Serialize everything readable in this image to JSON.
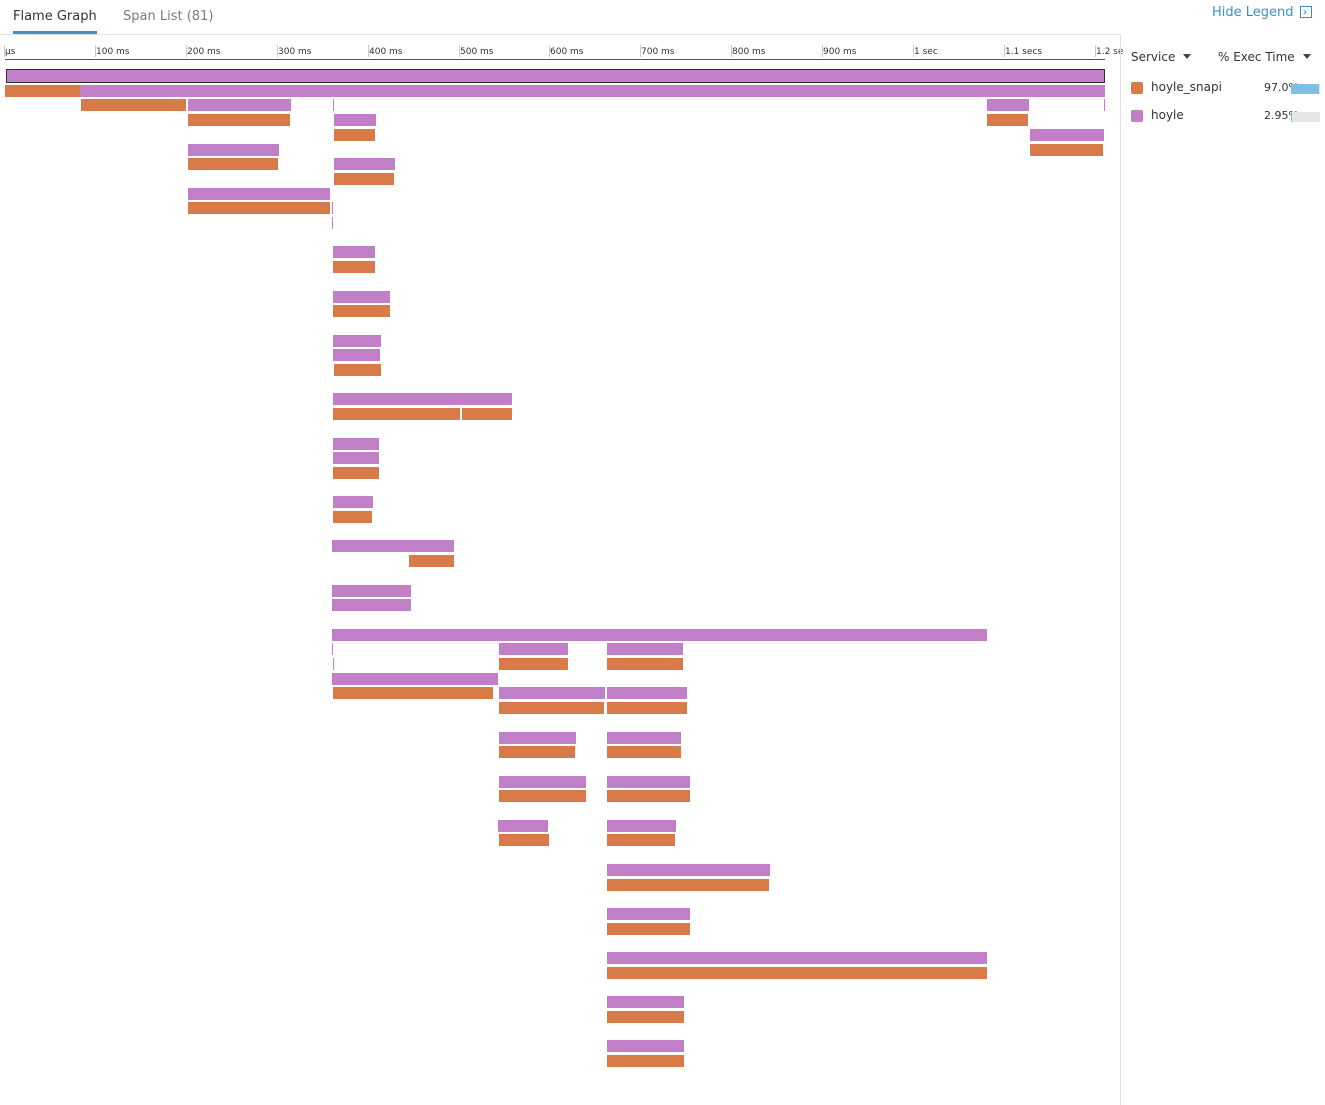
{
  "tabs": [
    {
      "label": "Flame Graph",
      "active": true
    },
    {
      "label": "Span List (81)",
      "active": false
    }
  ],
  "legend_toggle": {
    "label": "Hide Legend",
    "icon": "collapse-panel-icon"
  },
  "legend": {
    "service_header": "Service",
    "exec_header": "% Exec Time",
    "services": [
      {
        "name": "hoyle_snapi",
        "color": "#d97b48",
        "pct": "97.0%",
        "fraction": 0.97
      },
      {
        "name": "hoyle",
        "color": "#c07fc6",
        "pct": "2.95%",
        "fraction": 0.0295
      }
    ]
  },
  "timeline": {
    "total_ms": 1210,
    "ticks": [
      {
        "label": "µs",
        "ms": 0
      },
      {
        "label": "100 ms",
        "ms": 100
      },
      {
        "label": "200 ms",
        "ms": 200
      },
      {
        "label": "300 ms",
        "ms": 300
      },
      {
        "label": "400 ms",
        "ms": 400
      },
      {
        "label": "500 ms",
        "ms": 500
      },
      {
        "label": "600 ms",
        "ms": 600
      },
      {
        "label": "700 ms",
        "ms": 700
      },
      {
        "label": "800 ms",
        "ms": 800
      },
      {
        "label": "900 ms",
        "ms": 900
      },
      {
        "label": "1 sec",
        "ms": 1000
      },
      {
        "label": "1.1 secs",
        "ms": 1100
      },
      {
        "label": "1.2 se",
        "ms": 1200
      }
    ]
  },
  "spans": [
    {
      "service": "hoyle",
      "start": 2,
      "dur": 1207,
      "depth": 0,
      "root": true
    },
    {
      "service": "hoyle_snapi",
      "start": 0,
      "dur": 82,
      "depth": 1
    },
    {
      "service": "hoyle",
      "start": 83,
      "dur": 1127,
      "depth": 1
    },
    {
      "service": "hoyle_snapi",
      "start": 84,
      "dur": 115,
      "depth": 2
    },
    {
      "service": "hoyle",
      "start": 201,
      "dur": 114,
      "depth": 2
    },
    {
      "service": "hoyle_snapi",
      "start": 201,
      "dur": 113,
      "depth": 3
    },
    {
      "service": "hoyle",
      "start": 361,
      "dur": 1,
      "depth": 2
    },
    {
      "service": "hoyle",
      "start": 362,
      "dur": 46,
      "depth": 3
    },
    {
      "service": "hoyle_snapi",
      "start": 362,
      "dur": 45,
      "depth": 4
    },
    {
      "service": "hoyle",
      "start": 1080,
      "dur": 46,
      "depth": 2
    },
    {
      "service": "hoyle_snapi",
      "start": 1080,
      "dur": 45,
      "depth": 3
    },
    {
      "service": "hoyle",
      "start": 1127,
      "dur": 82,
      "depth": 4
    },
    {
      "service": "hoyle_snapi",
      "start": 1127,
      "dur": 81,
      "depth": 5
    },
    {
      "service": "hoyle",
      "start": 1209,
      "dur": 1,
      "depth": 2
    },
    {
      "service": "hoyle",
      "start": 201,
      "dur": 100,
      "depth": 5
    },
    {
      "service": "hoyle_snapi",
      "start": 201,
      "dur": 99,
      "depth": 6
    },
    {
      "service": "hoyle",
      "start": 362,
      "dur": 67,
      "depth": 6
    },
    {
      "service": "hoyle_snapi",
      "start": 362,
      "dur": 66,
      "depth": 7
    },
    {
      "service": "hoyle",
      "start": 201,
      "dur": 157,
      "depth": 8
    },
    {
      "service": "hoyle_snapi",
      "start": 201,
      "dur": 157,
      "depth": 9
    },
    {
      "service": "hoyle",
      "start": 360,
      "dur": 1,
      "depth": 9
    },
    {
      "service": "hoyle",
      "start": 360,
      "dur": 1,
      "depth": 10
    },
    {
      "service": "hoyle",
      "start": 361,
      "dur": 46,
      "depth": 12
    },
    {
      "service": "hoyle_snapi",
      "start": 361,
      "dur": 46,
      "depth": 13
    },
    {
      "service": "hoyle",
      "start": 361,
      "dur": 62,
      "depth": 15
    },
    {
      "service": "hoyle_snapi",
      "start": 361,
      "dur": 62,
      "depth": 16
    },
    {
      "service": "hoyle",
      "start": 361,
      "dur": 53,
      "depth": 18
    },
    {
      "service": "hoyle",
      "start": 361,
      "dur": 52,
      "depth": 19
    },
    {
      "service": "hoyle_snapi",
      "start": 362,
      "dur": 52,
      "depth": 20
    },
    {
      "service": "hoyle",
      "start": 361,
      "dur": 197,
      "depth": 22
    },
    {
      "service": "hoyle_snapi",
      "start": 361,
      "dur": 140,
      "depth": 23
    },
    {
      "service": "hoyle_snapi",
      "start": 503,
      "dur": 55,
      "depth": 23
    },
    {
      "service": "hoyle",
      "start": 361,
      "dur": 50,
      "depth": 25
    },
    {
      "service": "hoyle",
      "start": 361,
      "dur": 50,
      "depth": 26
    },
    {
      "service": "hoyle_snapi",
      "start": 361,
      "dur": 50,
      "depth": 27
    },
    {
      "service": "hoyle",
      "start": 361,
      "dur": 44,
      "depth": 29
    },
    {
      "service": "hoyle_snapi",
      "start": 361,
      "dur": 43,
      "depth": 30
    },
    {
      "service": "hoyle",
      "start": 360,
      "dur": 134,
      "depth": 32
    },
    {
      "service": "hoyle_snapi",
      "start": 444,
      "dur": 50,
      "depth": 33
    },
    {
      "service": "hoyle",
      "start": 360,
      "dur": 87,
      "depth": 35
    },
    {
      "service": "hoyle",
      "start": 360,
      "dur": 87,
      "depth": 36
    },
    {
      "service": "hoyle",
      "start": 360,
      "dur": 720,
      "depth": 38
    },
    {
      "service": "hoyle",
      "start": 360,
      "dur": 1,
      "depth": 39
    },
    {
      "service": "hoyle",
      "start": 543,
      "dur": 76,
      "depth": 39
    },
    {
      "service": "hoyle",
      "start": 662,
      "dur": 84,
      "depth": 39
    },
    {
      "service": "hoyle_snapi",
      "start": 543,
      "dur": 76,
      "depth": 40
    },
    {
      "service": "hoyle_snapi",
      "start": 662,
      "dur": 84,
      "depth": 40
    },
    {
      "service": "hoyle",
      "start": 361,
      "dur": 1,
      "depth": 40
    },
    {
      "service": "hoyle",
      "start": 360,
      "dur": 182,
      "depth": 41
    },
    {
      "service": "hoyle_snapi",
      "start": 361,
      "dur": 176,
      "depth": 42
    },
    {
      "service": "hoyle",
      "start": 543,
      "dur": 117,
      "depth": 42
    },
    {
      "service": "hoyle",
      "start": 662,
      "dur": 88,
      "depth": 42
    },
    {
      "service": "hoyle_snapi",
      "start": 543,
      "dur": 116,
      "depth": 43
    },
    {
      "service": "hoyle_snapi",
      "start": 662,
      "dur": 88,
      "depth": 43
    },
    {
      "service": "hoyle",
      "start": 543,
      "dur": 85,
      "depth": 45
    },
    {
      "service": "hoyle",
      "start": 662,
      "dur": 82,
      "depth": 45
    },
    {
      "service": "hoyle_snapi",
      "start": 543,
      "dur": 84,
      "depth": 46
    },
    {
      "service": "hoyle_snapi",
      "start": 662,
      "dur": 82,
      "depth": 46
    },
    {
      "service": "hoyle",
      "start": 543,
      "dur": 96,
      "depth": 48
    },
    {
      "service": "hoyle",
      "start": 662,
      "dur": 92,
      "depth": 48
    },
    {
      "service": "hoyle_snapi",
      "start": 543,
      "dur": 96,
      "depth": 49
    },
    {
      "service": "hoyle_snapi",
      "start": 662,
      "dur": 91,
      "depth": 49
    },
    {
      "service": "hoyle",
      "start": 542,
      "dur": 55,
      "depth": 51
    },
    {
      "service": "hoyle",
      "start": 662,
      "dur": 76,
      "depth": 51
    },
    {
      "service": "hoyle_snapi",
      "start": 543,
      "dur": 55,
      "depth": 52
    },
    {
      "service": "hoyle_snapi",
      "start": 662,
      "dur": 75,
      "depth": 52
    },
    {
      "service": "hoyle",
      "start": 662,
      "dur": 179,
      "depth": 54
    },
    {
      "service": "hoyle_snapi",
      "start": 662,
      "dur": 178,
      "depth": 55
    },
    {
      "service": "hoyle",
      "start": 662,
      "dur": 92,
      "depth": 57
    },
    {
      "service": "hoyle_snapi",
      "start": 662,
      "dur": 92,
      "depth": 58
    },
    {
      "service": "hoyle",
      "start": 662,
      "dur": 418,
      "depth": 60
    },
    {
      "service": "hoyle_snapi",
      "start": 662,
      "dur": 418,
      "depth": 61
    },
    {
      "service": "hoyle",
      "start": 662,
      "dur": 85,
      "depth": 63
    },
    {
      "service": "hoyle_snapi",
      "start": 662,
      "dur": 85,
      "depth": 64
    },
    {
      "service": "hoyle",
      "start": 662,
      "dur": 85,
      "depth": 66
    },
    {
      "service": "hoyle_snapi",
      "start": 662,
      "dur": 85,
      "depth": 67
    }
  ]
}
